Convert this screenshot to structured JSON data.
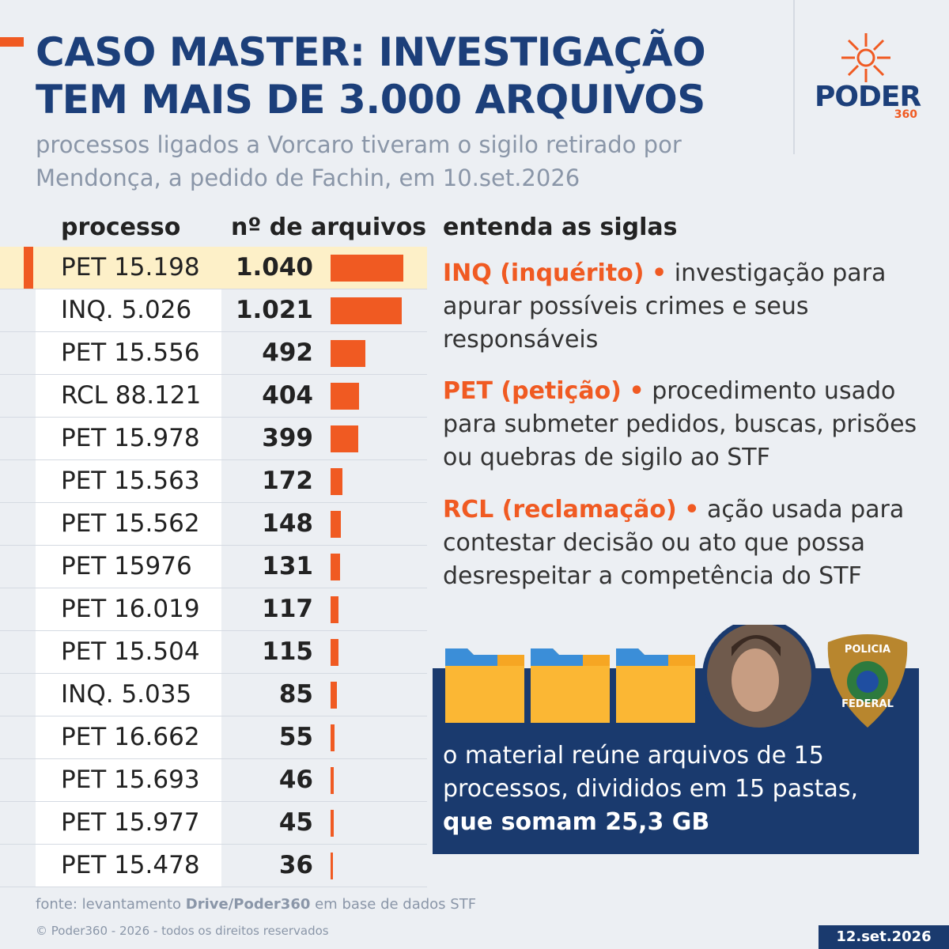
{
  "header": {
    "title": "CASO MASTER: INVESTIGAÇÃO TEM MAIS DE 3.000 ARQUIVOS",
    "subtitle": "processos ligados a Vorcaro tiveram o sigilo retirado por Mendonça, a pedido de Fachin, em 10.set.2026",
    "logo": {
      "name": "PODER",
      "number": "360"
    }
  },
  "chart_data": {
    "type": "bar",
    "orientation": "horizontal",
    "columns": [
      "processo",
      "nº de arquivos"
    ],
    "categories": [
      "PET 15.198",
      "INQ. 5.026",
      "PET 15.556",
      "RCL 88.121",
      "PET 15.978",
      "PET 15.563",
      "PET 15.562",
      "PET 15976",
      "PET 16.019",
      "PET 15.504",
      "INQ. 5.035",
      "PET 16.662",
      "PET 15.693",
      "PET 15.977",
      "PET 15.478"
    ],
    "values": [
      1040,
      1021,
      492,
      404,
      399,
      172,
      148,
      131,
      117,
      115,
      85,
      55,
      46,
      45,
      36
    ],
    "value_labels": [
      "1.040",
      "1.021",
      "492",
      "404",
      "399",
      "172",
      "148",
      "131",
      "117",
      "115",
      "85",
      "55",
      "46",
      "45",
      "36"
    ],
    "color": "#f05a22"
  },
  "glossary": {
    "title": "entenda as siglas",
    "items": [
      {
        "term": "INQ (inquérito)",
        "bullet": "•",
        "text": "investigação para apurar possíveis crimes e seus responsáveis"
      },
      {
        "term": "PET (petição)",
        "bullet": "•",
        "text": "procedimento usado para submeter pedidos, buscas, prisões ou quebras de sigilo ao STF"
      },
      {
        "term": "RCL (reclamação)",
        "bullet": "•",
        "text": "ação usada para contestar decisão ou ato que possa desrespeitar a competência do STF"
      }
    ]
  },
  "box": {
    "text": "o material reúne arquivos de 15 processos, divididos em 15 pastas,",
    "emphasis": "que somam 25,3 GB",
    "badge": {
      "top": "POLICIA",
      "bottom": "FEDERAL"
    }
  },
  "footer": {
    "source_prefix": "fonte: levantamento",
    "source_bold": "Drive/Poder360",
    "source_suffix": "em base de dados STF",
    "copyright": "© Poder360 - 2026 - todos os direitos reservados",
    "date": "12.set.2026"
  }
}
